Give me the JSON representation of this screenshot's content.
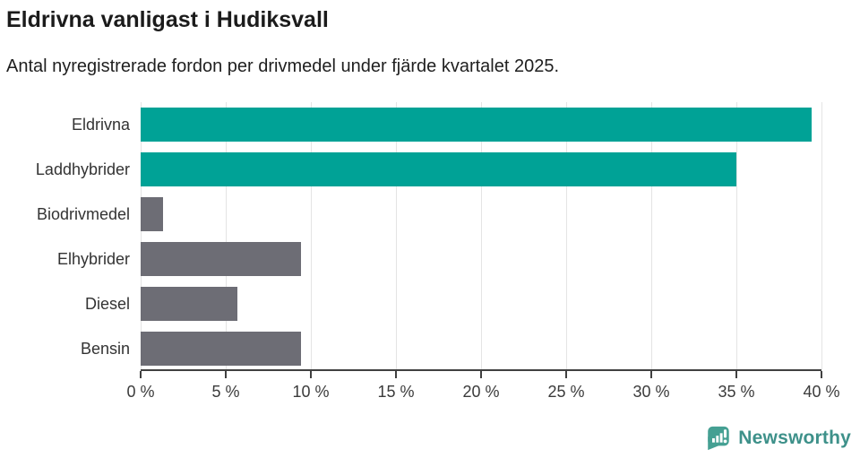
{
  "chart_data": {
    "type": "bar",
    "orientation": "horizontal",
    "title": "Eldrivna vanligast i Hudiksvall",
    "subtitle": "Antal nyregistrerade fordon per drivmedel under fjärde kvartalet 2025.",
    "categories": [
      "Eldrivna",
      "Laddhybrider",
      "Biodrivmedel",
      "Elhybrider",
      "Diesel",
      "Bensin"
    ],
    "values": [
      39.4,
      35.0,
      1.3,
      9.4,
      5.7,
      9.4
    ],
    "value_unit": "%",
    "bar_colors": [
      "#00A296",
      "#00A296",
      "#6D6D75",
      "#6D6D75",
      "#6D6D75",
      "#6D6D75"
    ],
    "xlabel": "",
    "ylabel": "",
    "xlim": [
      0,
      40
    ],
    "x_ticks": [
      0,
      5,
      10,
      15,
      20,
      25,
      30,
      35,
      40
    ],
    "x_tick_labels": [
      "0 %",
      "5 %",
      "10 %",
      "15 %",
      "20 %",
      "25 %",
      "30 %",
      "35 %",
      "40 %"
    ],
    "grid": "vertical-gridlines-behind-bars",
    "legend": false
  },
  "footer": {
    "brand": "Newsworthy",
    "icon": "newsworthy-speech-bubble-bar-chart-icon"
  },
  "colors": {
    "accent_teal": "#00A296",
    "bar_gray": "#6D6D75",
    "gridline": "#E4E4E4",
    "axis": "#404040",
    "title_text": "#1B1B1B",
    "brand_teal": "#3E918A",
    "logo_icon_teal": "#45A093",
    "background": "#FFFFFF"
  }
}
